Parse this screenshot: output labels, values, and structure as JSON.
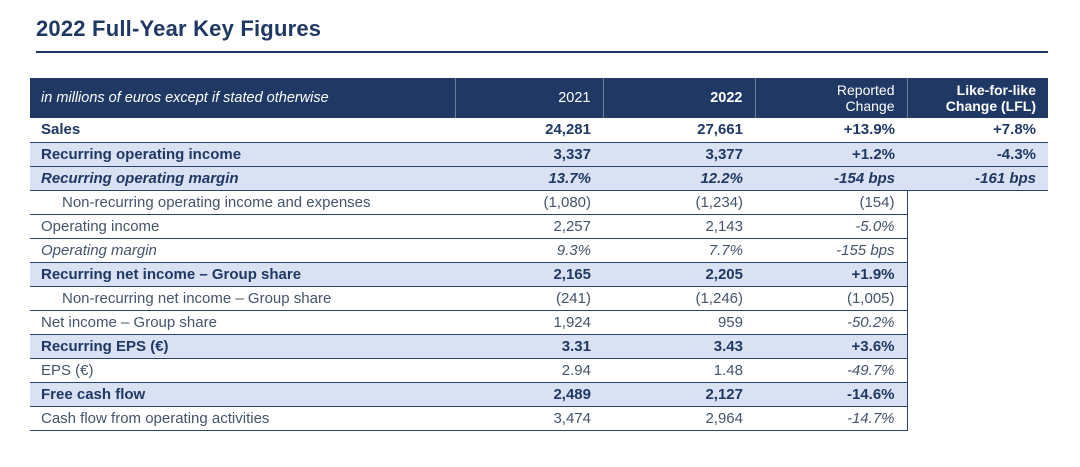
{
  "page": {
    "title": "2022 Full-Year Key Figures"
  },
  "theme": {
    "navy": "#1F3864",
    "row_highlight": "#D9E1F2",
    "background": "#FFFFFF"
  },
  "table": {
    "header": {
      "label": "in millions of euros except if stated otherwise",
      "col2021": "2021",
      "col2022": "2022",
      "reported": "Reported\nChange",
      "lfl": "Like-for-like\nChange (LFL)"
    },
    "rows": [
      {
        "label": "Sales",
        "v2021": "24,281",
        "v2022": "27,661",
        "reported": "+13.9%",
        "lfl": "+7.8%",
        "bold": true,
        "italic": false,
        "shaded": false,
        "indent": false,
        "reported_italic": false
      },
      {
        "label": "Recurring operating income",
        "v2021": "3,337",
        "v2022": "3,377",
        "reported": "+1.2%",
        "lfl": "-4.3%",
        "bold": true,
        "italic": false,
        "shaded": true,
        "indent": false,
        "reported_italic": false
      },
      {
        "label": "Recurring operating margin",
        "v2021": "13.7%",
        "v2022": "12.2%",
        "reported": "-154 bps",
        "lfl": "-161 bps",
        "bold": true,
        "italic": true,
        "shaded": true,
        "indent": false,
        "reported_italic": false
      },
      {
        "label": "Non-recurring operating income and expenses",
        "v2021": "(1,080)",
        "v2022": "(1,234)",
        "reported": "(154)",
        "lfl": null,
        "bold": false,
        "italic": false,
        "shaded": false,
        "indent": true,
        "reported_italic": false
      },
      {
        "label": "Operating income",
        "v2021": "2,257",
        "v2022": "2,143",
        "reported": "-5.0%",
        "lfl": null,
        "bold": false,
        "italic": false,
        "shaded": false,
        "indent": false,
        "reported_italic": true
      },
      {
        "label": "Operating margin",
        "v2021": "9.3%",
        "v2022": "7.7%",
        "reported": "-155 bps",
        "lfl": null,
        "bold": false,
        "italic": true,
        "shaded": false,
        "indent": false,
        "reported_italic": true
      },
      {
        "label": "Recurring net income – Group share",
        "v2021": "2,165",
        "v2022": "2,205",
        "reported": "+1.9%",
        "lfl": null,
        "bold": true,
        "italic": false,
        "shaded": true,
        "indent": false,
        "reported_italic": false
      },
      {
        "label": "Non-recurring net income – Group share",
        "v2021": "(241)",
        "v2022": "(1,246)",
        "reported": "(1,005)",
        "lfl": null,
        "bold": false,
        "italic": false,
        "shaded": false,
        "indent": true,
        "reported_italic": false
      },
      {
        "label": "Net income – Group share",
        "v2021": "1,924",
        "v2022": "959",
        "reported": "-50.2%",
        "lfl": null,
        "bold": false,
        "italic": false,
        "shaded": false,
        "indent": false,
        "reported_italic": true
      },
      {
        "label": "Recurring EPS (€)",
        "v2021": "3.31",
        "v2022": "3.43",
        "reported": "+3.6%",
        "lfl": null,
        "bold": true,
        "italic": false,
        "shaded": true,
        "indent": false,
        "reported_italic": false
      },
      {
        "label": "EPS (€)",
        "v2021": "2.94",
        "v2022": "1.48",
        "reported": "-49.7%",
        "lfl": null,
        "bold": false,
        "italic": false,
        "shaded": false,
        "indent": false,
        "reported_italic": true
      },
      {
        "label": "Free cash flow",
        "v2021": "2,489",
        "v2022": "2,127",
        "reported": "-14.6%",
        "lfl": null,
        "bold": true,
        "italic": false,
        "shaded": true,
        "indent": false,
        "reported_italic": false
      },
      {
        "label": "Cash flow from operating activities",
        "v2021": "3,474",
        "v2022": "2,964",
        "reported": "-14.7%",
        "lfl": null,
        "bold": false,
        "italic": false,
        "shaded": false,
        "indent": false,
        "reported_italic": true
      }
    ]
  }
}
